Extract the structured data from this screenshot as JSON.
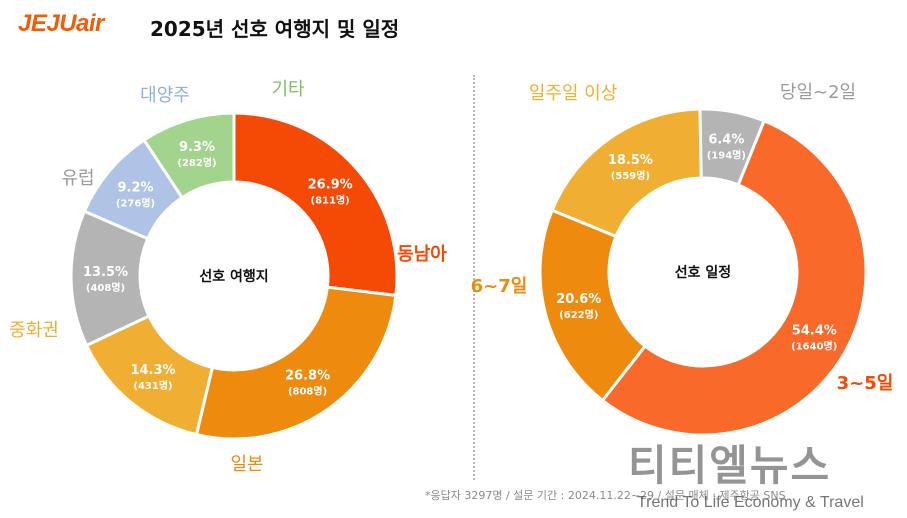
{
  "header": {
    "logo_text": "JEJUair",
    "title": "2025년 선호 여행지 및 일정"
  },
  "chart_data": [
    {
      "type": "donut",
      "center_label": "선호 여행지",
      "categories": [
        "동남아",
        "일본",
        "중화권",
        "유럽",
        "대양주",
        "기타"
      ],
      "values": [
        26.9,
        26.8,
        14.3,
        13.5,
        9.2,
        9.3
      ],
      "counts": [
        "811명",
        "808명",
        "431명",
        "408명",
        "276명",
        "282명"
      ],
      "percent_labels": [
        "26.9%",
        "26.8%",
        "14.3%",
        "13.5%",
        "9.2%",
        "9.3%"
      ],
      "count_labels": [
        "(811명)",
        "(808명)",
        "(431명)",
        "(408명)",
        "(276명)",
        "(282명)"
      ],
      "colors": [
        "#f54a05",
        "#ee8a0e",
        "#f0ae32",
        "#b4b4b4",
        "#aec3e6",
        "#a2d48d"
      ],
      "label_colors": [
        "#f54a05",
        "#ee8a0e",
        "#f0ae32",
        "#9b9b9b",
        "#8faee0",
        "#7cc160"
      ]
    },
    {
      "type": "donut",
      "center_label": "선호 일정",
      "categories": [
        "3~5일",
        "6~7일",
        "일주일 이상",
        "당일~2일"
      ],
      "values": [
        54.4,
        20.6,
        18.5,
        6.4
      ],
      "counts": [
        "1640명",
        "622명",
        "559명",
        "194명"
      ],
      "percent_labels": [
        "54.4%",
        "20.6%",
        "18.5%",
        "6.4%"
      ],
      "count_labels": [
        "(1640명)",
        "(622명)",
        "(559명)",
        "(194명)"
      ],
      "colors": [
        "#f8692a",
        "#ee8a0e",
        "#f0ae32",
        "#b4b4b4"
      ],
      "label_colors": [
        "#f54a05",
        "#ee8a0e",
        "#f0ae32",
        "#9b9b9b"
      ]
    }
  ],
  "footnote": "*응답자 3297명 / 설문 기간 : 2024.11.22~29 / 설문 매체 : 제주항공 SNS",
  "watermark": {
    "korean": "티티엘뉴스",
    "english": "Trend To Life Economy & Travel"
  }
}
